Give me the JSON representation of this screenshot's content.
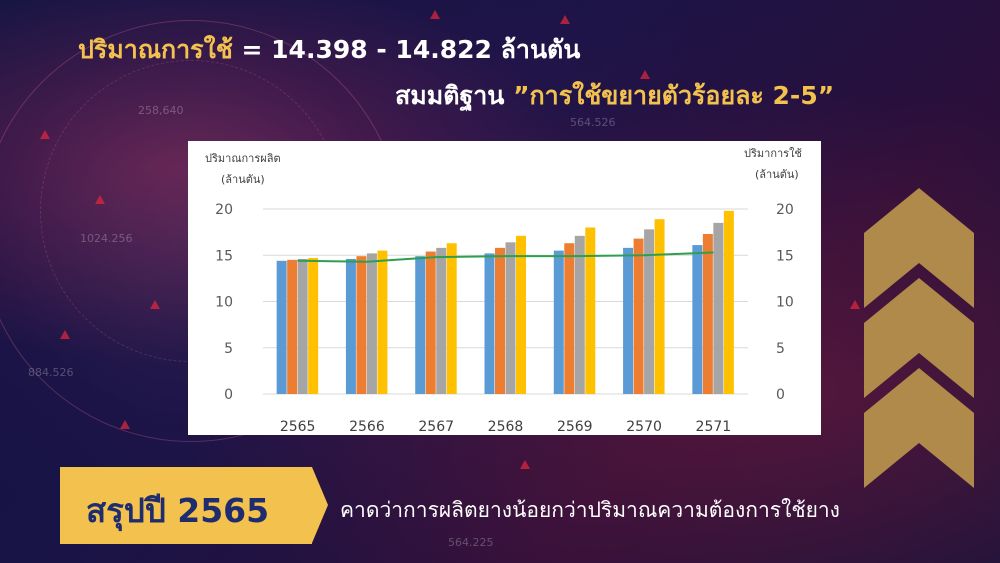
{
  "headline": {
    "line1_label": "ปริมาณการใช้",
    "line1_value": "= 14.398 - 14.822 ล้านตัน",
    "line2_label": "สมมติฐาน",
    "line2_value": "”การใช้ขยายตัวร้อยละ 2-5”"
  },
  "summary": {
    "title": "สรุปปี 2565",
    "text": "คาดว่าการผลิตยางน้อยกว่าปริมาณความต้องการใช้ยาง"
  },
  "background_numbers": [
    "258,640",
    "1024.256",
    "884.526",
    "564.526",
    "564.225"
  ],
  "colors": {
    "gold": "#f2c14e",
    "navy": "#1f2d6e",
    "bar_blue": "#5b9bd5",
    "bar_orange": "#ed7d31",
    "bar_gray": "#a5a5a5",
    "bar_yellow": "#ffc000",
    "line_green": "#2e9e4f"
  },
  "chart_data": {
    "type": "bar",
    "left_axis_title_line1": "ปริมาณการผลิต",
    "left_axis_title_line2": "(ล้านตัน)",
    "right_axis_title_line1": "ปริมาการใช้",
    "right_axis_title_line2": "(ล้านตัน)",
    "categories": [
      "2565",
      "2566",
      "2567",
      "2568",
      "2569",
      "2570",
      "2571"
    ],
    "ylim": [
      0,
      20
    ],
    "yticks": [
      0,
      5,
      10,
      15,
      20
    ],
    "grid": true,
    "legend": "none",
    "series": [
      {
        "values": [
          14.4,
          14.6,
          14.9,
          15.2,
          15.5,
          15.8,
          16.1
        ],
        "color": "#5b9bd5"
      },
      {
        "values": [
          14.5,
          14.9,
          15.4,
          15.8,
          16.3,
          16.8,
          17.3
        ],
        "color": "#ed7d31"
      },
      {
        "values": [
          14.6,
          15.2,
          15.8,
          16.4,
          17.1,
          17.8,
          18.5
        ],
        "color": "#a5a5a5"
      },
      {
        "values": [
          14.7,
          15.5,
          16.3,
          17.1,
          18.0,
          18.9,
          19.8
        ],
        "color": "#ffc000"
      }
    ],
    "line_series": {
      "values": [
        14.4,
        14.3,
        14.8,
        14.9,
        14.9,
        15.0,
        15.3
      ],
      "color": "#2e9e4f"
    }
  }
}
